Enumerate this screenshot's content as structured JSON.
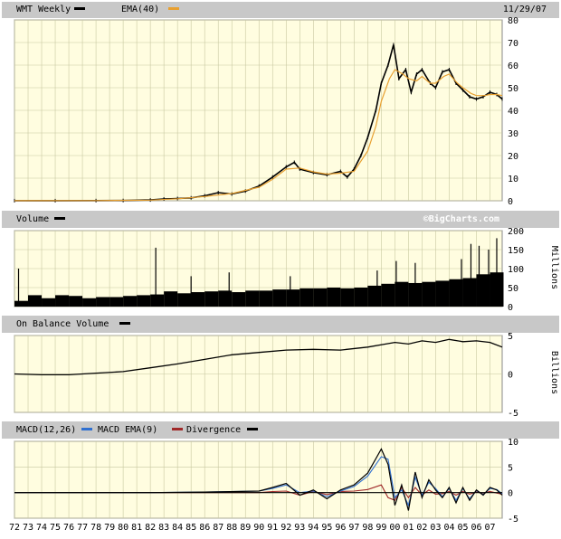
{
  "chart_data": [
    {
      "type": "line",
      "title": "WMT Weekly",
      "date": "11/29/07",
      "series": [
        {
          "name": "WMT Weekly",
          "color": "#000000",
          "points": [
            [
              1972,
              0.05
            ],
            [
              1975,
              0.05
            ],
            [
              1978,
              0.08
            ],
            [
              1980,
              0.12
            ],
            [
              1982,
              0.35
            ],
            [
              1983,
              0.8
            ],
            [
              1984,
              1.0
            ],
            [
              1985,
              1.3
            ],
            [
              1986,
              2.2
            ],
            [
              1987,
              3.6
            ],
            [
              1988,
              3.0
            ],
            [
              1989,
              4.3
            ],
            [
              1990,
              6.5
            ],
            [
              1991,
              10.5
            ],
            [
              1992,
              15.0
            ],
            [
              1992.6,
              17.0
            ],
            [
              1993,
              14.0
            ],
            [
              1994,
              12.5
            ],
            [
              1995,
              11.5
            ],
            [
              1996,
              13.0
            ],
            [
              1996.5,
              10.5
            ],
            [
              1997,
              14.0
            ],
            [
              1997.5,
              20.0
            ],
            [
              1998,
              28.0
            ],
            [
              1998.6,
              40.0
            ],
            [
              1999,
              52.0
            ],
            [
              1999.5,
              60.0
            ],
            [
              1999.9,
              69.0
            ],
            [
              2000.3,
              54.0
            ],
            [
              2000.8,
              58.0
            ],
            [
              2001.2,
              48.0
            ],
            [
              2001.6,
              56.0
            ],
            [
              2002,
              58.0
            ],
            [
              2002.6,
              52.0
            ],
            [
              2003,
              50.0
            ],
            [
              2003.5,
              57.0
            ],
            [
              2004,
              58.0
            ],
            [
              2004.5,
              52.0
            ],
            [
              2005,
              49.0
            ],
            [
              2005.5,
              46.0
            ],
            [
              2006,
              45.0
            ],
            [
              2006.5,
              46.0
            ],
            [
              2007,
              48.0
            ],
            [
              2007.5,
              47.0
            ],
            [
              2007.9,
              45.0
            ]
          ]
        },
        {
          "name": "EMA(40)",
          "color": "#e8a030",
          "points": [
            [
              1972,
              0.05
            ],
            [
              1978,
              0.07
            ],
            [
              1982,
              0.3
            ],
            [
              1984,
              0.9
            ],
            [
              1986,
              1.9
            ],
            [
              1988,
              3.2
            ],
            [
              1990,
              6.0
            ],
            [
              1991,
              9.5
            ],
            [
              1992,
              14.0
            ],
            [
              1993,
              14.5
            ],
            [
              1994,
              12.8
            ],
            [
              1995,
              11.8
            ],
            [
              1996,
              12.2
            ],
            [
              1997,
              13.0
            ],
            [
              1998,
              22.0
            ],
            [
              1998.6,
              33.0
            ],
            [
              1999,
              44.0
            ],
            [
              1999.6,
              54.0
            ],
            [
              2000,
              58.0
            ],
            [
              2000.6,
              56.0
            ],
            [
              2001,
              54.0
            ],
            [
              2001.6,
              53.0
            ],
            [
              2002,
              55.0
            ],
            [
              2002.6,
              52.0
            ],
            [
              2003,
              52.0
            ],
            [
              2003.6,
              55.0
            ],
            [
              2004,
              56.0
            ],
            [
              2004.6,
              52.0
            ],
            [
              2005,
              50.0
            ],
            [
              2005.6,
              47.5
            ],
            [
              2006,
              46.5
            ],
            [
              2006.6,
              46.5
            ],
            [
              2007,
              47.0
            ],
            [
              2007.5,
              47.0
            ],
            [
              2007.9,
              46.5
            ]
          ]
        }
      ],
      "ylim": [
        0,
        80
      ],
      "yticks": [
        "0",
        "10",
        "20",
        "30",
        "40",
        "50",
        "60",
        "70",
        "80"
      ],
      "grid": true
    },
    {
      "type": "bar",
      "title": "Volume",
      "watermark": "©BigCharts.com",
      "ylabel": "Millions",
      "yticks": [
        "0",
        "50",
        "100",
        "150",
        "200"
      ],
      "ylim": [
        0,
        200
      ],
      "color": "#000000",
      "points": [
        [
          1972,
          15
        ],
        [
          1973,
          30
        ],
        [
          1974,
          22
        ],
        [
          1975,
          30
        ],
        [
          1976,
          28
        ],
        [
          1977,
          22
        ],
        [
          1978,
          25
        ],
        [
          1979,
          25
        ],
        [
          1980,
          28
        ],
        [
          1981,
          30
        ],
        [
          1982,
          32
        ],
        [
          1983,
          40
        ],
        [
          1984,
          35
        ],
        [
          1985,
          38
        ],
        [
          1986,
          40
        ],
        [
          1987,
          42
        ],
        [
          1988,
          38
        ],
        [
          1989,
          42
        ],
        [
          1990,
          42
        ],
        [
          1991,
          45
        ],
        [
          1992,
          45
        ],
        [
          1993,
          48
        ],
        [
          1994,
          48
        ],
        [
          1995,
          50
        ],
        [
          1996,
          48
        ],
        [
          1997,
          50
        ],
        [
          1998,
          55
        ],
        [
          1999,
          60
        ],
        [
          2000,
          65
        ],
        [
          2001,
          62
        ],
        [
          2002,
          65
        ],
        [
          2003,
          68
        ],
        [
          2004,
          72
        ],
        [
          2005,
          75
        ],
        [
          2006,
          85
        ],
        [
          2007,
          90
        ]
      ],
      "spikes": [
        [
          1972.3,
          100
        ],
        [
          1982.4,
          155
        ],
        [
          1985,
          80
        ],
        [
          1987.8,
          90
        ],
        [
          1992.3,
          80
        ],
        [
          1998.7,
          95
        ],
        [
          2000.1,
          120
        ],
        [
          2001.5,
          115
        ],
        [
          2004.9,
          125
        ],
        [
          2005.6,
          165
        ],
        [
          2006.2,
          160
        ],
        [
          2006.9,
          150
        ],
        [
          2007.5,
          180
        ]
      ]
    },
    {
      "type": "line",
      "title": "On Balance Volume",
      "ylabel": "Billions",
      "yticks": [
        "-5",
        "0",
        "5"
      ],
      "ylim": [
        -5,
        5
      ],
      "series": [
        {
          "name": "On Balance Volume",
          "color": "#000000",
          "points": [
            [
              1972,
              0.0
            ],
            [
              1974,
              -0.1
            ],
            [
              1976,
              -0.1
            ],
            [
              1978,
              0.1
            ],
            [
              1980,
              0.3
            ],
            [
              1982,
              0.8
            ],
            [
              1984,
              1.3
            ],
            [
              1986,
              1.9
            ],
            [
              1988,
              2.5
            ],
            [
              1990,
              2.8
            ],
            [
              1992,
              3.1
            ],
            [
              1994,
              3.2
            ],
            [
              1996,
              3.1
            ],
            [
              1998,
              3.5
            ],
            [
              2000,
              4.1
            ],
            [
              2001,
              3.9
            ],
            [
              2002,
              4.3
            ],
            [
              2003,
              4.1
            ],
            [
              2004,
              4.5
            ],
            [
              2005,
              4.2
            ],
            [
              2006,
              4.3
            ],
            [
              2007,
              4.1
            ],
            [
              2007.9,
              3.5
            ]
          ]
        }
      ],
      "grid": true
    },
    {
      "type": "line",
      "title": "MACD(12,26)",
      "yticks": [
        "-5",
        "0",
        "5",
        "10"
      ],
      "ylim": [
        -5,
        10
      ],
      "series": [
        {
          "name": "MACD(12,26)",
          "color": "#000000",
          "points": [
            [
              1972,
              0
            ],
            [
              1982,
              0
            ],
            [
              1986,
              0.1
            ],
            [
              1990,
              0.3
            ],
            [
              1991,
              1.0
            ],
            [
              1992,
              1.8
            ],
            [
              1993,
              -0.5
            ],
            [
              1994,
              0.5
            ],
            [
              1995,
              -1.2
            ],
            [
              1996,
              0.5
            ],
            [
              1997,
              1.5
            ],
            [
              1998,
              3.8
            ],
            [
              1999,
              8.5
            ],
            [
              1999.5,
              5.5
            ],
            [
              2000,
              -2.5
            ],
            [
              2000.5,
              1.5
            ],
            [
              2001,
              -3.5
            ],
            [
              2001.5,
              4.0
            ],
            [
              2002,
              -1.0
            ],
            [
              2002.5,
              2.5
            ],
            [
              2003,
              0.5
            ],
            [
              2003.5,
              -1.0
            ],
            [
              2004,
              1.0
            ],
            [
              2004.5,
              -2.0
            ],
            [
              2005,
              1.0
            ],
            [
              2005.5,
              -1.5
            ],
            [
              2006,
              0.5
            ],
            [
              2006.5,
              -0.5
            ],
            [
              2007,
              1.0
            ],
            [
              2007.5,
              0.5
            ],
            [
              2007.9,
              -0.5
            ]
          ]
        },
        {
          "name": "MACD EMA(9)",
          "color": "#3070d0",
          "points": [
            [
              1972,
              0
            ],
            [
              1982,
              0
            ],
            [
              1986,
              0.1
            ],
            [
              1990,
              0.3
            ],
            [
              1991,
              0.8
            ],
            [
              1992,
              1.5
            ],
            [
              1993,
              0.0
            ],
            [
              1994,
              0.3
            ],
            [
              1995,
              -0.8
            ],
            [
              1996,
              0.3
            ],
            [
              1997,
              1.2
            ],
            [
              1998,
              3.2
            ],
            [
              1999,
              7.0
            ],
            [
              1999.5,
              6.5
            ],
            [
              2000,
              -1.0
            ],
            [
              2000.5,
              0.5
            ],
            [
              2001,
              -2.5
            ],
            [
              2001.5,
              3.0
            ],
            [
              2002,
              -0.5
            ],
            [
              2002.5,
              2.0
            ],
            [
              2003,
              0.8
            ],
            [
              2003.5,
              -0.8
            ],
            [
              2004,
              0.8
            ],
            [
              2004.5,
              -1.5
            ],
            [
              2005,
              0.8
            ],
            [
              2005.5,
              -1.2
            ],
            [
              2006,
              0.4
            ],
            [
              2006.5,
              -0.4
            ],
            [
              2007,
              0.8
            ],
            [
              2007.5,
              0.6
            ],
            [
              2007.9,
              -0.2
            ]
          ]
        },
        {
          "name": "Divergence",
          "color": "#a02828",
          "points": [
            [
              1972,
              0
            ],
            [
              1982,
              0
            ],
            [
              1986,
              0.0
            ],
            [
              1990,
              0.0
            ],
            [
              1991,
              0.2
            ],
            [
              1992,
              0.3
            ],
            [
              1993,
              -0.5
            ],
            [
              1994,
              0.2
            ],
            [
              1995,
              -0.4
            ],
            [
              1996,
              0.2
            ],
            [
              1997,
              0.3
            ],
            [
              1998,
              0.6
            ],
            [
              1999,
              1.5
            ],
            [
              1999.5,
              -1.0
            ],
            [
              2000,
              -1.5
            ],
            [
              2000.5,
              1.0
            ],
            [
              2001,
              -1.0
            ],
            [
              2001.5,
              1.0
            ],
            [
              2002,
              -0.5
            ],
            [
              2002.5,
              0.5
            ],
            [
              2003,
              -0.3
            ],
            [
              2003.5,
              -0.2
            ],
            [
              2004,
              0.2
            ],
            [
              2004.5,
              -0.5
            ],
            [
              2005,
              0.2
            ],
            [
              2005.5,
              -0.3
            ],
            [
              2006,
              0.1
            ],
            [
              2006.5,
              -0.1
            ],
            [
              2007,
              0.2
            ],
            [
              2007.5,
              -0.1
            ],
            [
              2007.9,
              -0.3
            ]
          ]
        }
      ],
      "legend": [
        {
          "name": "MACD(12,26)",
          "color": "#000000"
        },
        {
          "name": "MACD EMA(9)",
          "color": "#3070d0"
        },
        {
          "name": "Divergence",
          "color": "#a02828"
        }
      ],
      "grid": true
    }
  ],
  "x_axis": {
    "start": 1972,
    "end": 2007.9,
    "labels": [
      "72",
      "73",
      "74",
      "75",
      "76",
      "77",
      "78",
      "79",
      "80",
      "81",
      "82",
      "83",
      "84",
      "85",
      "86",
      "87",
      "88",
      "89",
      "90",
      "91",
      "92",
      "93",
      "94",
      "95",
      "96",
      "97",
      "98",
      "99",
      "00",
      "01",
      "02",
      "03",
      "04",
      "05",
      "06",
      "07"
    ]
  }
}
